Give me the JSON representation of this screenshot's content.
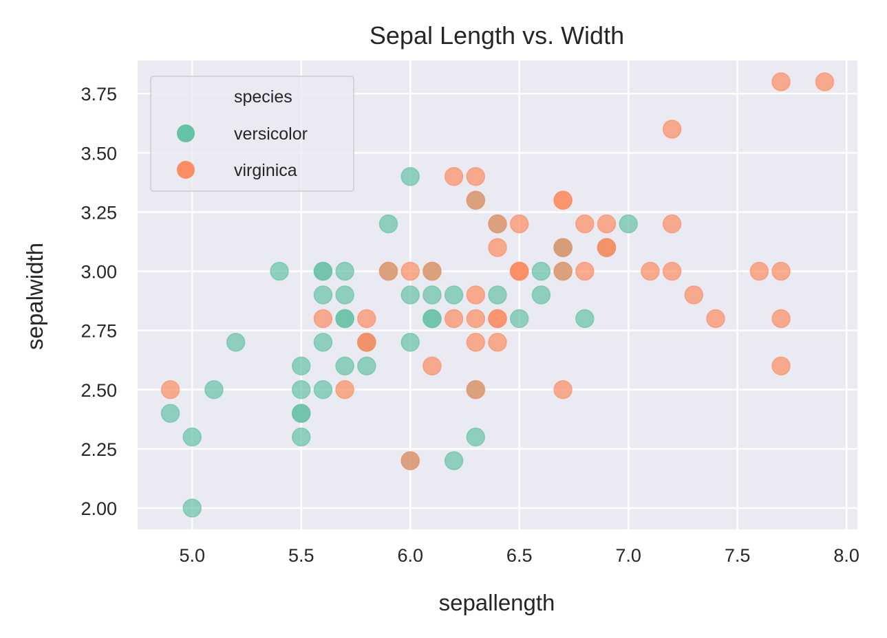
{
  "chart_data": {
    "type": "scatter",
    "title": "Sepal Length vs. Width",
    "xlabel": "sepallength",
    "ylabel": "sepalwidth",
    "xlim": [
      4.75,
      8.05
    ],
    "ylim": [
      1.91,
      3.89
    ],
    "xticks": [
      5.0,
      5.5,
      6.0,
      6.5,
      7.0,
      7.5,
      8.0
    ],
    "xtick_labels": [
      "5.0",
      "5.5",
      "6.0",
      "6.5",
      "7.0",
      "7.5",
      "8.0"
    ],
    "yticks": [
      2.0,
      2.25,
      2.5,
      2.75,
      3.0,
      3.25,
      3.5,
      3.75
    ],
    "ytick_labels": [
      "2.00",
      "2.25",
      "2.50",
      "2.75",
      "3.00",
      "3.25",
      "3.50",
      "3.75"
    ],
    "grid": true,
    "background_color": "#eaeaf2",
    "legend_title": "species",
    "legend_position": "top-left",
    "series": [
      {
        "name": "versicolor",
        "color": "#66c2a5",
        "points": [
          [
            7.0,
            3.2
          ],
          [
            6.4,
            3.2
          ],
          [
            6.9,
            3.1
          ],
          [
            5.5,
            2.3
          ],
          [
            6.5,
            2.8
          ],
          [
            5.7,
            2.8
          ],
          [
            6.3,
            3.3
          ],
          [
            4.9,
            2.4
          ],
          [
            6.6,
            2.9
          ],
          [
            5.2,
            2.7
          ],
          [
            5.0,
            2.0
          ],
          [
            5.9,
            3.0
          ],
          [
            6.0,
            2.2
          ],
          [
            6.1,
            2.9
          ],
          [
            5.6,
            2.9
          ],
          [
            6.7,
            3.1
          ],
          [
            5.6,
            3.0
          ],
          [
            5.8,
            2.7
          ],
          [
            6.2,
            2.2
          ],
          [
            5.6,
            2.5
          ],
          [
            5.9,
            3.2
          ],
          [
            6.1,
            2.8
          ],
          [
            6.3,
            2.5
          ],
          [
            6.1,
            2.8
          ],
          [
            6.4,
            2.9
          ],
          [
            6.6,
            3.0
          ],
          [
            6.8,
            2.8
          ],
          [
            6.7,
            3.0
          ],
          [
            6.0,
            2.9
          ],
          [
            5.7,
            2.6
          ],
          [
            5.5,
            2.4
          ],
          [
            5.5,
            2.4
          ],
          [
            5.8,
            2.7
          ],
          [
            6.0,
            2.7
          ],
          [
            5.4,
            3.0
          ],
          [
            6.0,
            3.4
          ],
          [
            6.7,
            3.1
          ],
          [
            6.3,
            2.3
          ],
          [
            5.6,
            3.0
          ],
          [
            5.5,
            2.5
          ],
          [
            5.5,
            2.6
          ],
          [
            6.1,
            3.0
          ],
          [
            5.8,
            2.6
          ],
          [
            5.0,
            2.3
          ],
          [
            5.6,
            2.7
          ],
          [
            5.7,
            3.0
          ],
          [
            5.7,
            2.9
          ],
          [
            6.2,
            2.9
          ],
          [
            5.1,
            2.5
          ],
          [
            5.7,
            2.8
          ]
        ]
      },
      {
        "name": "virginica",
        "color": "#fc8d62",
        "points": [
          [
            6.3,
            3.3
          ],
          [
            5.8,
            2.7
          ],
          [
            7.1,
            3.0
          ],
          [
            6.3,
            2.9
          ],
          [
            6.5,
            3.0
          ],
          [
            7.6,
            3.0
          ],
          [
            4.9,
            2.5
          ],
          [
            7.3,
            2.9
          ],
          [
            6.7,
            2.5
          ],
          [
            7.2,
            3.6
          ],
          [
            6.5,
            3.2
          ],
          [
            6.4,
            2.7
          ],
          [
            6.8,
            3.0
          ],
          [
            5.7,
            2.5
          ],
          [
            5.8,
            2.8
          ],
          [
            6.4,
            3.2
          ],
          [
            6.5,
            3.0
          ],
          [
            7.7,
            3.8
          ],
          [
            7.7,
            2.6
          ],
          [
            6.0,
            2.2
          ],
          [
            6.9,
            3.2
          ],
          [
            5.6,
            2.8
          ],
          [
            7.7,
            2.8
          ],
          [
            6.3,
            2.7
          ],
          [
            6.7,
            3.3
          ],
          [
            7.2,
            3.2
          ],
          [
            6.2,
            2.8
          ],
          [
            6.1,
            3.0
          ],
          [
            6.4,
            2.8
          ],
          [
            7.2,
            3.0
          ],
          [
            7.4,
            2.8
          ],
          [
            7.9,
            3.8
          ],
          [
            6.4,
            2.8
          ],
          [
            6.3,
            2.8
          ],
          [
            6.1,
            2.6
          ],
          [
            7.7,
            3.0
          ],
          [
            6.3,
            3.4
          ],
          [
            6.4,
            3.1
          ],
          [
            6.0,
            3.0
          ],
          [
            6.9,
            3.1
          ],
          [
            6.7,
            3.1
          ],
          [
            6.9,
            3.1
          ],
          [
            5.8,
            2.7
          ],
          [
            6.8,
            3.2
          ],
          [
            6.7,
            3.3
          ],
          [
            6.7,
            3.0
          ],
          [
            6.3,
            2.5
          ],
          [
            6.5,
            3.0
          ],
          [
            6.2,
            3.4
          ],
          [
            5.9,
            3.0
          ]
        ]
      }
    ]
  }
}
